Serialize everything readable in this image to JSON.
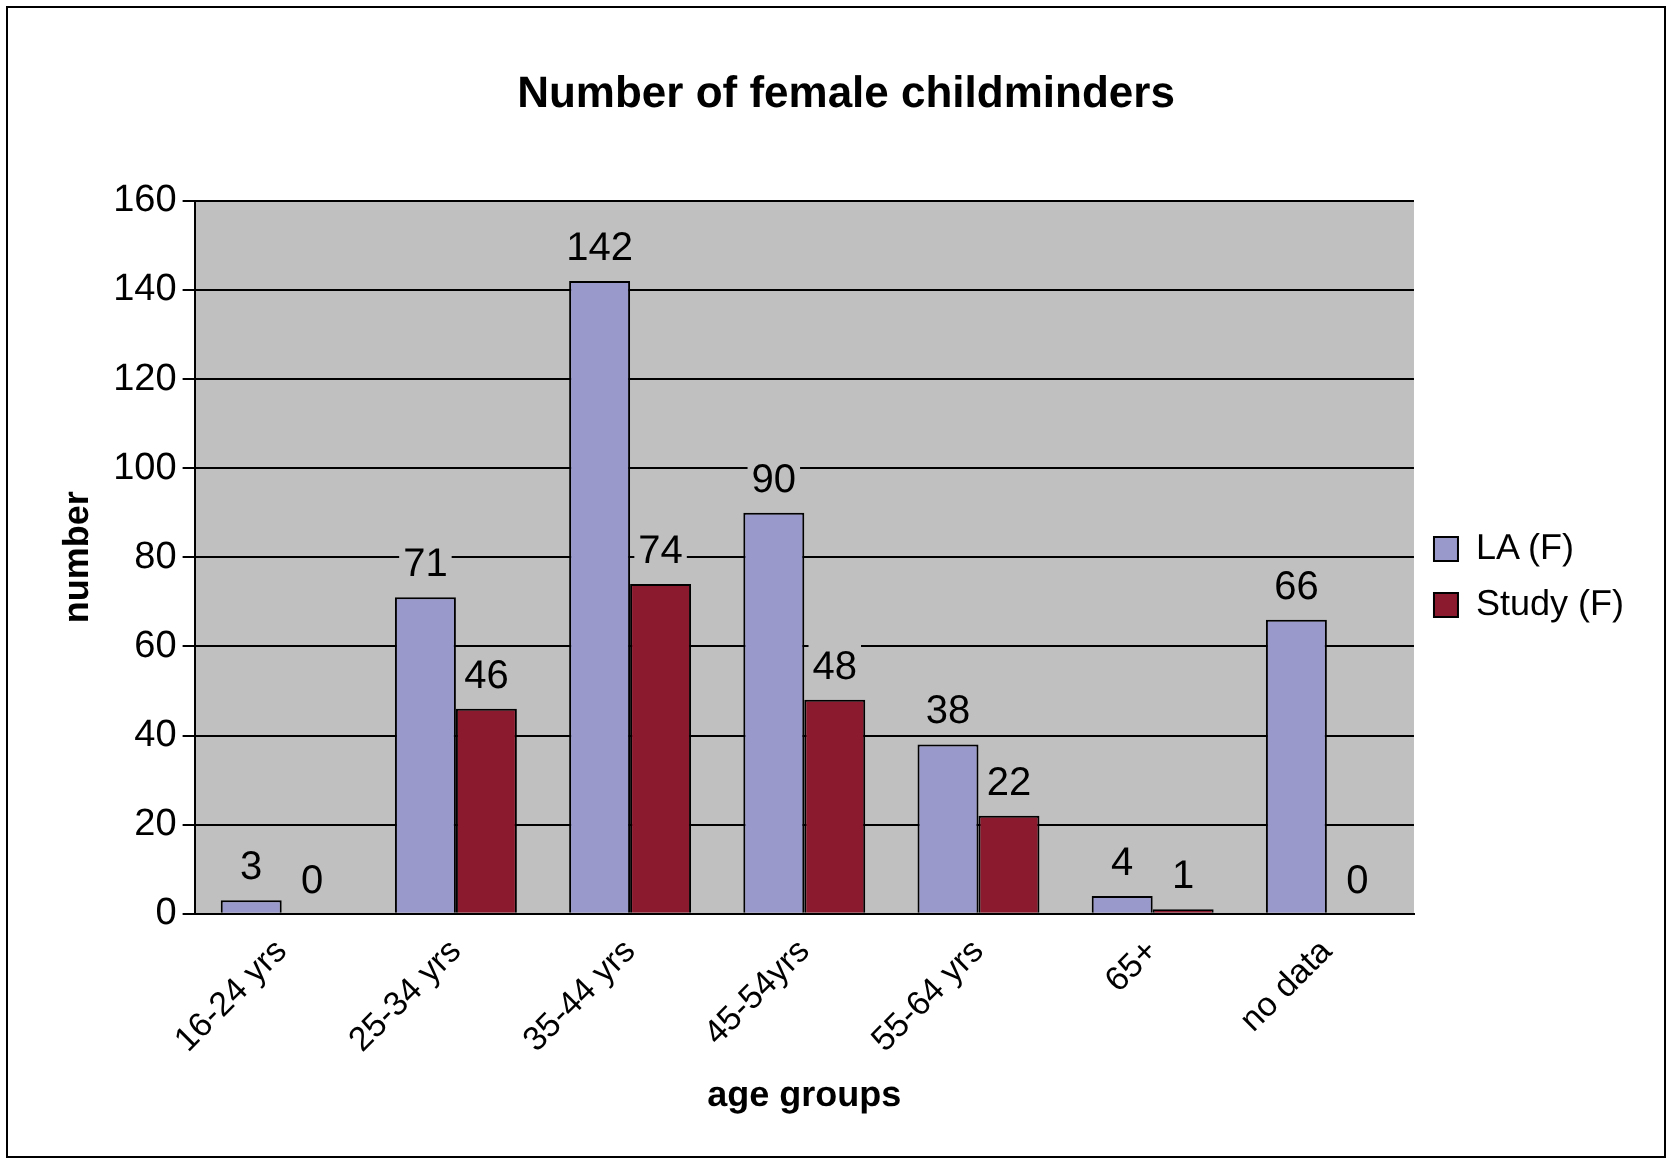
{
  "chart_data": {
    "type": "bar",
    "title": "Number of female childminders",
    "xlabel": "age groups",
    "ylabel": "number",
    "categories": [
      "16-24 yrs",
      "25-34 yrs",
      "35-44 yrs",
      "45-54yrs",
      "55-64 yrs",
      "65+",
      "no data"
    ],
    "series": [
      {
        "name": "LA (F)",
        "color": "#9999cc",
        "values": [
          3,
          71,
          142,
          90,
          38,
          4,
          66
        ]
      },
      {
        "name": "Study (F)",
        "color": "#8b1a2e",
        "values": [
          0,
          46,
          74,
          48,
          22,
          1,
          0
        ]
      }
    ],
    "ylim": [
      0,
      160
    ],
    "yticks": [
      0,
      20,
      40,
      60,
      80,
      100,
      120,
      140,
      160
    ],
    "grid": "y",
    "legend": "right",
    "data_labels": true
  }
}
